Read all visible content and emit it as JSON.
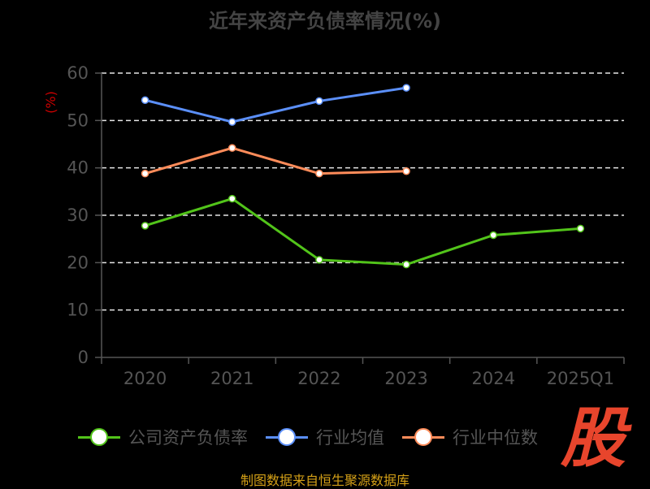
{
  "chart_data": {
    "type": "line",
    "title": "近年来资产负债率情况(%)",
    "ylabel": "(%)",
    "categories": [
      "2020",
      "2021",
      "2022",
      "2023",
      "2024",
      "2025Q1"
    ],
    "ylim": [
      0,
      60
    ],
    "yticks": [
      "0",
      "10",
      "20",
      "30",
      "40",
      "50",
      "60"
    ],
    "grid": true,
    "legend_position": "bottom",
    "series": [
      {
        "name": "公司资产负债率",
        "color": "#52c41a",
        "values": [
          27.8,
          33.5,
          20.6,
          19.6,
          25.8,
          27.2
        ]
      },
      {
        "name": "行业均值",
        "color": "#5b8ff9",
        "values": [
          54.3,
          49.7,
          54.1,
          56.9,
          null,
          null
        ]
      },
      {
        "name": "行业中位数",
        "color": "#ff8c5a",
        "values": [
          38.8,
          44.2,
          38.8,
          39.3,
          null,
          null
        ]
      }
    ]
  },
  "source": "制图数据来自恒生聚源数据库",
  "logo_text": "股"
}
